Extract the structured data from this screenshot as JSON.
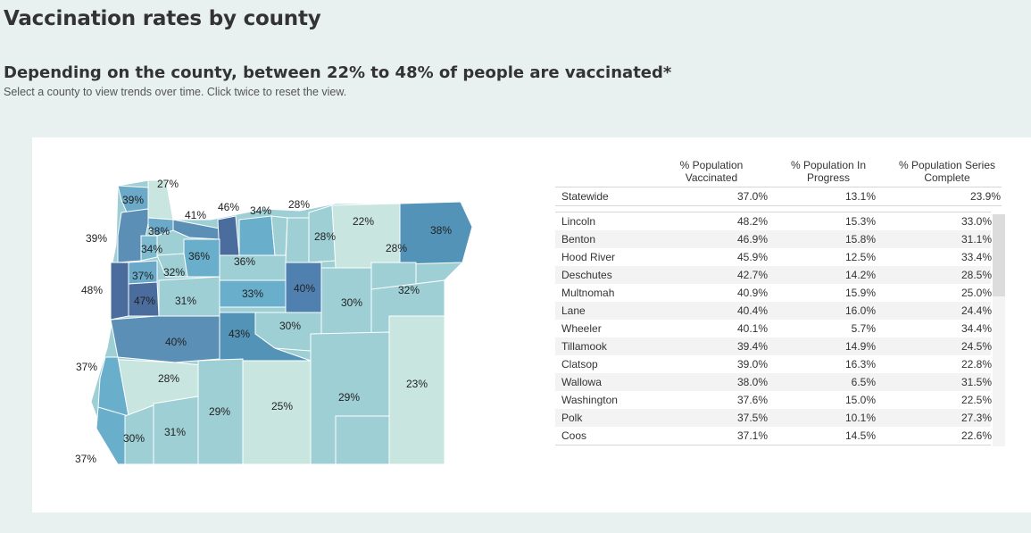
{
  "page": {
    "title": "Vaccination rates by county",
    "subtitle": "Depending on the county, between 22% to 48% of people are vaccinated*",
    "instructions": "Select a county to view trends over time. Click twice to reset the view."
  },
  "colors": {
    "background": "#e8f1ef",
    "map_lightest": "#c8e6df",
    "map_light": "#9ecfd4",
    "map_mid": "#69aecb",
    "map_dark": "#5393b8",
    "map_darkest": "#4a6d9e"
  },
  "map_labels": [
    "27%",
    "39%",
    "41%",
    "46%",
    "34%",
    "28%",
    "22%",
    "39%",
    "38%",
    "38%",
    "28%",
    "34%",
    "36%",
    "36%",
    "28%",
    "37%",
    "32%",
    "48%",
    "47%",
    "31%",
    "33%",
    "40%",
    "30%",
    "32%",
    "30%",
    "40%",
    "43%",
    "37%",
    "28%",
    "29%",
    "25%",
    "29%",
    "23%",
    "31%",
    "30%",
    "37%"
  ],
  "table": {
    "headers": {
      "col1": "% Population Vaccinated",
      "col2": "% Population In Progress",
      "col3": "% Population Series Complete"
    },
    "statewide": {
      "name": "Statewide",
      "vaccinated": "37.0%",
      "in_progress": "13.1%",
      "complete": "23.9%"
    },
    "rows": [
      {
        "name": "Lincoln",
        "vaccinated": "48.2%",
        "in_progress": "15.3%",
        "complete": "33.0%"
      },
      {
        "name": "Benton",
        "vaccinated": "46.9%",
        "in_progress": "15.8%",
        "complete": "31.1%"
      },
      {
        "name": "Hood River",
        "vaccinated": "45.9%",
        "in_progress": "12.5%",
        "complete": "33.4%"
      },
      {
        "name": "Deschutes",
        "vaccinated": "42.7%",
        "in_progress": "14.2%",
        "complete": "28.5%"
      },
      {
        "name": "Multnomah",
        "vaccinated": "40.9%",
        "in_progress": "15.9%",
        "complete": "25.0%"
      },
      {
        "name": "Lane",
        "vaccinated": "40.4%",
        "in_progress": "16.0%",
        "complete": "24.4%"
      },
      {
        "name": "Wheeler",
        "vaccinated": "40.1%",
        "in_progress": "5.7%",
        "complete": "34.4%"
      },
      {
        "name": "Tillamook",
        "vaccinated": "39.4%",
        "in_progress": "14.9%",
        "complete": "24.5%"
      },
      {
        "name": "Clatsop",
        "vaccinated": "39.0%",
        "in_progress": "16.3%",
        "complete": "22.8%"
      },
      {
        "name": "Wallowa",
        "vaccinated": "38.0%",
        "in_progress": "6.5%",
        "complete": "31.5%"
      },
      {
        "name": "Washington",
        "vaccinated": "37.6%",
        "in_progress": "15.0%",
        "complete": "22.5%"
      },
      {
        "name": "Polk",
        "vaccinated": "37.5%",
        "in_progress": "10.1%",
        "complete": "27.3%"
      },
      {
        "name": "Coos",
        "vaccinated": "37.1%",
        "in_progress": "14.5%",
        "complete": "22.6%"
      }
    ]
  }
}
